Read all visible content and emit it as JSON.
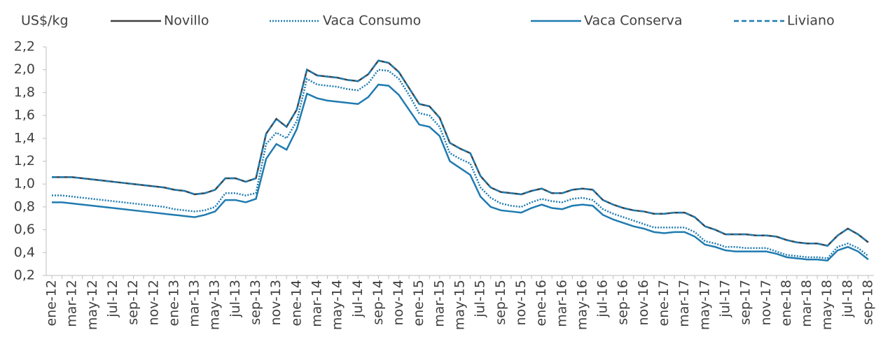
{
  "chart_data": {
    "type": "line",
    "y_label": "US$/kg",
    "categories": [
      "ene-12",
      null,
      "mar-12",
      null,
      "may-12",
      null,
      "jul-12",
      null,
      "sep-12",
      null,
      "nov-12",
      null,
      "ene-13",
      null,
      "mar-13",
      null,
      "may-13",
      null,
      "jul-13",
      null,
      "sep-13",
      null,
      "nov-13",
      null,
      "ene-14",
      null,
      "mar-14",
      null,
      "may-14",
      null,
      "jul-14",
      null,
      "sep-14",
      null,
      "nov-14",
      null,
      "ene-15",
      null,
      "mar-15",
      null,
      "may-15",
      null,
      "jul-15",
      null,
      "sep-15",
      null,
      "nov-15",
      null,
      "ene-16",
      null,
      "mar-16",
      null,
      "may-16",
      null,
      "jul-16",
      null,
      "sep-16",
      null,
      "nov-16",
      null,
      "ene-17",
      null,
      "mar-17",
      null,
      "may-17",
      null,
      "jul-17",
      null,
      "sep-17",
      null,
      "nov-17",
      null,
      "ene-18",
      null,
      "mar-18",
      null,
      "may-18",
      null,
      "jul-18",
      null,
      "sep-18"
    ],
    "series": [
      {
        "name": "Novillo",
        "color": "#404040",
        "style": "solid",
        "values": [
          1.06,
          1.06,
          1.06,
          1.05,
          1.04,
          1.03,
          1.02,
          1.01,
          1.0,
          0.99,
          0.98,
          0.97,
          0.95,
          0.94,
          0.91,
          0.92,
          0.95,
          1.05,
          1.05,
          1.02,
          1.05,
          1.44,
          1.57,
          1.5,
          1.65,
          2.0,
          1.95,
          1.94,
          1.93,
          1.91,
          1.9,
          1.96,
          2.08,
          2.06,
          1.98,
          1.84,
          1.7,
          1.68,
          1.58,
          1.36,
          1.31,
          1.27,
          1.07,
          0.97,
          0.93,
          0.92,
          0.91,
          0.94,
          0.96,
          0.92,
          0.92,
          0.95,
          0.96,
          0.95,
          0.86,
          0.82,
          0.79,
          0.77,
          0.76,
          0.74,
          0.74,
          0.75,
          0.75,
          0.71,
          0.63,
          0.6,
          0.56,
          0.56,
          0.56,
          0.55,
          0.55,
          0.54,
          0.51,
          0.49,
          0.48,
          0.48,
          0.46,
          0.55,
          0.61,
          0.56,
          0.49
        ]
      },
      {
        "name": "Vaca Consumo",
        "color": "#1f7bb0",
        "style": "dotted",
        "values": [
          0.9,
          0.9,
          0.89,
          0.88,
          0.87,
          0.86,
          0.85,
          0.84,
          0.83,
          0.82,
          0.81,
          0.8,
          0.78,
          0.77,
          0.76,
          0.77,
          0.8,
          0.92,
          0.92,
          0.9,
          0.92,
          1.35,
          1.45,
          1.4,
          1.55,
          1.92,
          1.87,
          1.86,
          1.85,
          1.83,
          1.82,
          1.88,
          2.0,
          1.99,
          1.92,
          1.78,
          1.62,
          1.6,
          1.5,
          1.27,
          1.22,
          1.18,
          0.97,
          0.88,
          0.83,
          0.81,
          0.8,
          0.84,
          0.87,
          0.85,
          0.84,
          0.87,
          0.88,
          0.86,
          0.78,
          0.74,
          0.71,
          0.68,
          0.65,
          0.62,
          0.62,
          0.62,
          0.62,
          0.58,
          0.5,
          0.48,
          0.45,
          0.45,
          0.44,
          0.44,
          0.44,
          0.41,
          0.38,
          0.37,
          0.36,
          0.36,
          0.35,
          0.45,
          0.48,
          0.44,
          0.37
        ]
      },
      {
        "name": "Vaca Conserva",
        "color": "#1f7bb0",
        "style": "solid",
        "values": [
          0.84,
          0.84,
          0.83,
          0.82,
          0.81,
          0.8,
          0.79,
          0.78,
          0.77,
          0.76,
          0.75,
          0.74,
          0.73,
          0.72,
          0.71,
          0.73,
          0.76,
          0.86,
          0.86,
          0.84,
          0.87,
          1.22,
          1.35,
          1.3,
          1.48,
          1.79,
          1.75,
          1.73,
          1.72,
          1.71,
          1.7,
          1.76,
          1.87,
          1.86,
          1.78,
          1.65,
          1.52,
          1.5,
          1.42,
          1.2,
          1.14,
          1.08,
          0.89,
          0.8,
          0.77,
          0.76,
          0.75,
          0.79,
          0.82,
          0.79,
          0.78,
          0.81,
          0.82,
          0.81,
          0.73,
          0.69,
          0.66,
          0.63,
          0.61,
          0.58,
          0.57,
          0.58,
          0.58,
          0.54,
          0.47,
          0.45,
          0.42,
          0.41,
          0.41,
          0.41,
          0.41,
          0.39,
          0.36,
          0.35,
          0.34,
          0.34,
          0.33,
          0.42,
          0.45,
          0.41,
          0.34
        ]
      },
      {
        "name": "Liviano",
        "color": "#1f7bb0",
        "style": "dashed",
        "values": [
          1.06,
          1.06,
          1.06,
          1.05,
          1.04,
          1.03,
          1.02,
          1.01,
          1.0,
          0.99,
          0.98,
          0.97,
          0.95,
          0.94,
          0.91,
          0.92,
          0.95,
          1.05,
          1.05,
          1.02,
          1.05,
          1.44,
          1.57,
          1.5,
          1.65,
          2.0,
          1.95,
          1.94,
          1.93,
          1.91,
          1.9,
          1.96,
          2.08,
          2.06,
          1.98,
          1.84,
          1.7,
          1.68,
          1.58,
          1.36,
          1.31,
          1.27,
          1.07,
          0.97,
          0.93,
          0.92,
          0.91,
          0.94,
          0.96,
          0.92,
          0.92,
          0.95,
          0.96,
          0.95,
          0.86,
          0.82,
          0.79,
          0.77,
          0.76,
          0.74,
          0.74,
          0.75,
          0.75,
          0.71,
          0.63,
          0.6,
          0.56,
          0.56,
          0.56,
          0.55,
          0.55,
          0.54,
          0.51,
          0.49,
          0.48,
          0.48,
          0.46,
          0.55,
          0.61,
          0.56,
          0.49
        ]
      }
    ],
    "ylim": [
      0.2,
      2.2
    ],
    "yticks": [
      {
        "value": 0.2,
        "label": "0,2"
      },
      {
        "value": 0.4,
        "label": "0,4"
      },
      {
        "value": 0.6,
        "label": "0,6"
      },
      {
        "value": 0.8,
        "label": "0,8"
      },
      {
        "value": 1.0,
        "label": "1,0"
      },
      {
        "value": 1.2,
        "label": "1,2"
      },
      {
        "value": 1.4,
        "label": "1,4"
      },
      {
        "value": 1.6,
        "label": "1,6"
      },
      {
        "value": 1.8,
        "label": "1,8"
      },
      {
        "value": 2.0,
        "label": "2,0"
      },
      {
        "value": 2.2,
        "label": "2,2"
      }
    ],
    "grid": false
  }
}
